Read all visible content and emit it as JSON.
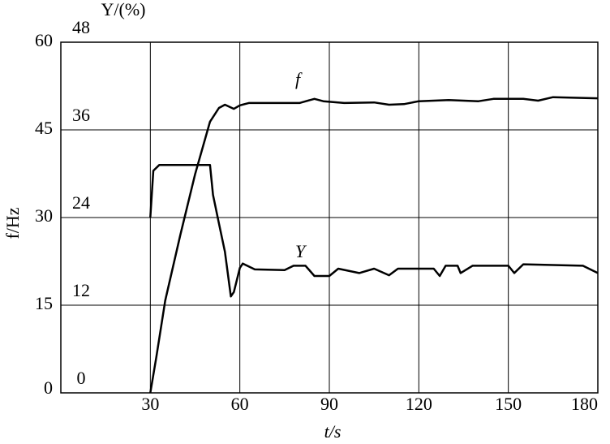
{
  "chart_data": {
    "type": "line",
    "xlabel": "t/s",
    "ylabel": "f/Hz",
    "y2label": "Y/(%)",
    "annotations": [
      "f",
      "Y"
    ],
    "xlim": [
      0,
      180
    ],
    "xticks": [
      30,
      60,
      90,
      120,
      150,
      180
    ],
    "ylim": [
      0,
      60
    ],
    "yticks": [
      0,
      15,
      30,
      45,
      60
    ],
    "y2lim": [
      0,
      48
    ],
    "y2ticks": [
      0,
      12,
      24,
      36,
      48
    ],
    "grid": true,
    "series": [
      {
        "name": "f",
        "color": "#000000",
        "x": [
          30,
          32,
          35,
          40,
          45,
          50,
          53,
          55,
          58,
          60,
          63,
          70,
          80,
          85,
          88,
          95,
          105,
          110,
          115,
          120,
          130,
          140,
          145,
          155,
          160,
          165,
          180
        ],
        "values": [
          0,
          6.1,
          15.8,
          26.9,
          37.4,
          46.4,
          48.75,
          49.3,
          48.6,
          49.2,
          49.6,
          49.6,
          49.6,
          50.3,
          49.9,
          49.6,
          49.7,
          49.3,
          49.4,
          49.9,
          50.1,
          49.9,
          50.3,
          50.3,
          50.0,
          50.6,
          50.4
        ]
      },
      {
        "name": "Y",
        "color": "#000000",
        "axis": "y2",
        "x": [
          30,
          31,
          33,
          50,
          51,
          53,
          55,
          57,
          58,
          60,
          61,
          65,
          75,
          78,
          82,
          85,
          90,
          93,
          100,
          105,
          110,
          113,
          125,
          127,
          129,
          133,
          134,
          138,
          150,
          152,
          155,
          175,
          180
        ],
        "values": [
          24,
          30.4,
          31.2,
          31.2,
          27.1,
          23.2,
          19.3,
          13.2,
          13.8,
          17.1,
          17.7,
          16.9,
          16.8,
          17.4,
          17.4,
          16,
          16,
          17,
          16.4,
          17,
          16.1,
          17,
          17,
          16,
          17.4,
          17.4,
          16.4,
          17.4,
          17.4,
          16.4,
          17.6,
          17.4,
          16.4
        ]
      }
    ]
  }
}
